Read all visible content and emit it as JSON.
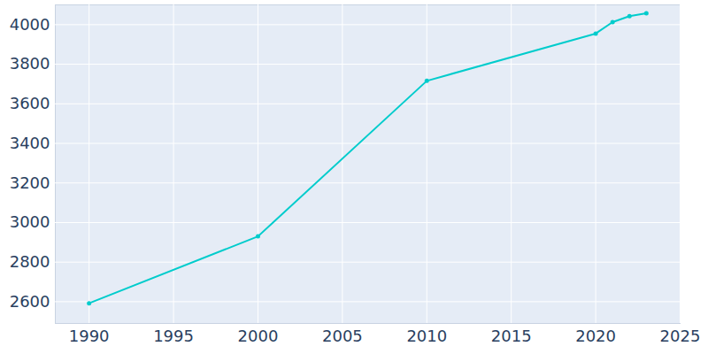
{
  "chart_data": {
    "type": "line",
    "x": [
      1990,
      2000,
      2010,
      2020,
      2021,
      2022,
      2023
    ],
    "values": [
      2592,
      2930,
      3716,
      3955,
      4013,
      4043,
      4058
    ],
    "color": "#00cccc",
    "marker": "circle",
    "xlim": [
      1988,
      2025
    ],
    "xticks": [
      1990,
      1995,
      2000,
      2005,
      2010,
      2015,
      2020,
      2025
    ],
    "ylim": [
      2490,
      4100
    ],
    "yticks": [
      2600,
      2800,
      3000,
      3200,
      3400,
      3600,
      3800,
      4000
    ],
    "grid": true
  }
}
